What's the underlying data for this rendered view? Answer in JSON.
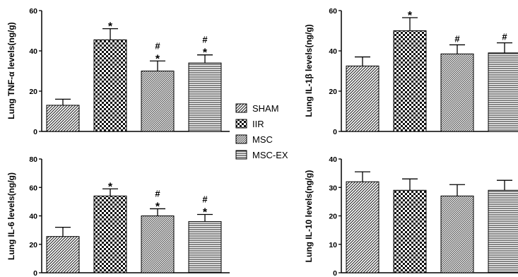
{
  "legend": {
    "entries": [
      {
        "label": "SHAM",
        "pattern": "diag"
      },
      {
        "label": "IIR",
        "pattern": "check"
      },
      {
        "label": "MSC",
        "pattern": "diag-dense"
      },
      {
        "label": "MSC-EX",
        "pattern": "hlines"
      }
    ]
  },
  "chart_data": [
    {
      "type": "bar",
      "ylabel": "Lung TNF-α levels(ng/g)",
      "categories": [
        "SHAM",
        "IIR",
        "MSC",
        "MSC-EX"
      ],
      "values": [
        13,
        45.5,
        30,
        34
      ],
      "errors": [
        3,
        5.5,
        5,
        4
      ],
      "annotations": [
        [],
        [
          "*"
        ],
        [
          "*",
          "#"
        ],
        [
          "*",
          "#"
        ]
      ],
      "yticks": [
        "0",
        "20",
        "40",
        "60"
      ],
      "ylim": [
        0,
        60
      ]
    },
    {
      "type": "bar",
      "ylabel": "Lung IL-1β levels(ng/g)",
      "categories": [
        "SHAM",
        "IIR",
        "MSC",
        "MSC-EX"
      ],
      "values": [
        32.5,
        50,
        38.5,
        39
      ],
      "errors": [
        4.5,
        6.5,
        4.5,
        5
      ],
      "annotations": [
        [],
        [
          "*"
        ],
        [
          "#"
        ],
        [
          "#"
        ]
      ],
      "yticks": [
        "0",
        "20",
        "40",
        "60"
      ],
      "ylim": [
        0,
        60
      ]
    },
    {
      "type": "bar",
      "ylabel": "Lung IL-6 levels(ng/g)",
      "categories": [
        "SHAM",
        "IIR",
        "MSC",
        "MSC-EX"
      ],
      "values": [
        25.5,
        54,
        40,
        36
      ],
      "errors": [
        6.5,
        5,
        5,
        5
      ],
      "annotations": [
        [],
        [
          "*"
        ],
        [
          "*",
          "#"
        ],
        [
          "*",
          "#"
        ]
      ],
      "yticks": [
        "0",
        "20",
        "40",
        "60",
        "80"
      ],
      "ylim": [
        0,
        80
      ]
    },
    {
      "type": "bar",
      "ylabel": "Lung IL-10 levels(ng/g)",
      "categories": [
        "SHAM",
        "IIR",
        "MSC",
        "MSC-EX"
      ],
      "values": [
        32,
        29,
        27,
        29
      ],
      "errors": [
        3.5,
        4,
        4,
        3.5
      ],
      "annotations": [
        [],
        [],
        [],
        []
      ],
      "yticks": [
        "0",
        "10",
        "20",
        "30",
        "40"
      ],
      "ylim": [
        0,
        40
      ]
    }
  ]
}
